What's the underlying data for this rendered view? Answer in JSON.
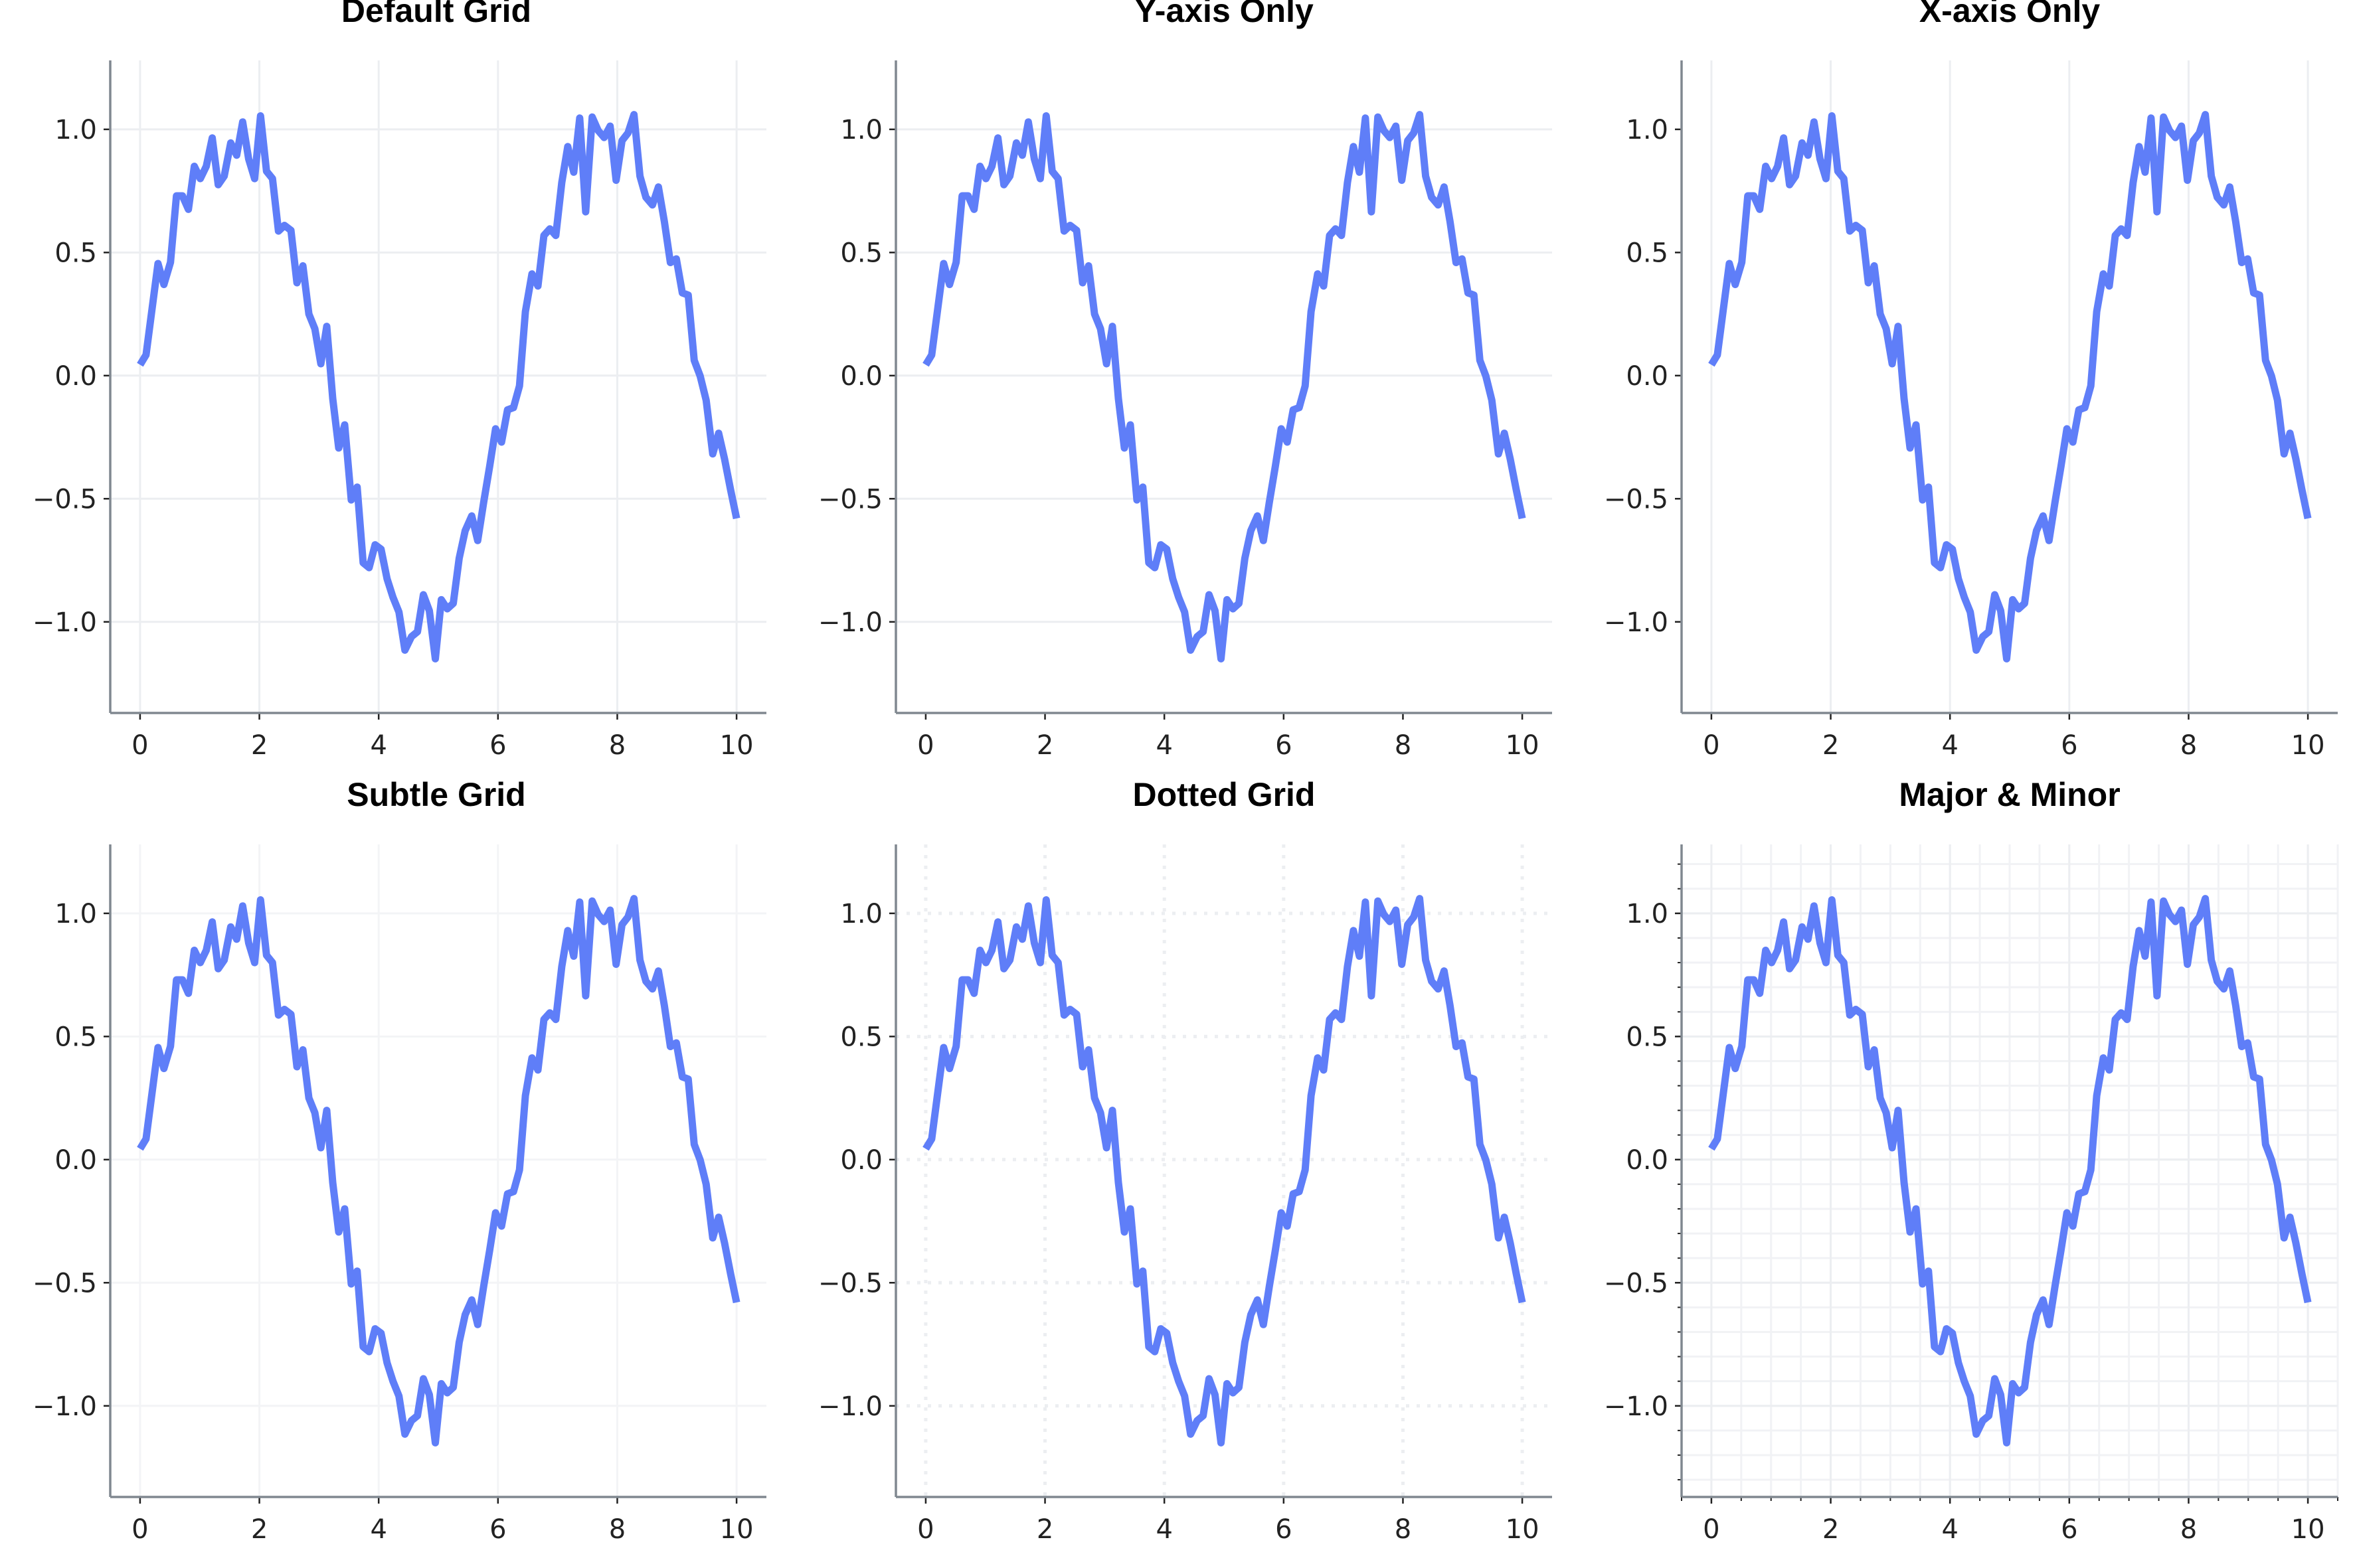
{
  "chart_data": {
    "type": "line",
    "layout": "2x3 subplots",
    "line_color": "#5f7ef8",
    "spine_color": "#808890",
    "grid_color": "#eceef1",
    "xlim": [
      -0.5,
      10.5
    ],
    "ylim": [
      -1.37,
      1.28
    ],
    "x_ticks": [
      0,
      2,
      4,
      6,
      8,
      10
    ],
    "x_tick_labels": [
      "0",
      "2",
      "4",
      "6",
      "8",
      "10"
    ],
    "y_ticks": [
      -1.0,
      -0.5,
      0.0,
      0.5,
      1.0
    ],
    "y_tick_labels": [
      "−1.0",
      "−0.5",
      "0.0",
      "0.5",
      "1.0"
    ],
    "x": [
      0,
      0.1,
      0.2,
      0.3,
      0.4,
      0.51,
      0.61,
      0.71,
      0.81,
      0.91,
      1.01,
      1.11,
      1.21,
      1.31,
      1.41,
      1.52,
      1.62,
      1.72,
      1.82,
      1.92,
      2.02,
      2.12,
      2.22,
      2.32,
      2.42,
      2.53,
      2.63,
      2.73,
      2.83,
      2.93,
      3.03,
      3.13,
      3.23,
      3.33,
      3.43,
      3.54,
      3.64,
      3.74,
      3.84,
      3.94,
      4.04,
      4.14,
      4.24,
      4.34,
      4.44,
      4.55,
      4.65,
      4.75,
      4.85,
      4.95,
      5.05,
      5.15,
      5.25,
      5.35,
      5.45,
      5.56,
      5.66,
      5.76,
      5.86,
      5.96,
      6.06,
      6.16,
      6.26,
      6.36,
      6.46,
      6.57,
      6.67,
      6.77,
      6.87,
      6.97,
      7.07,
      7.17,
      7.27,
      7.37,
      7.47,
      7.58,
      7.68,
      7.78,
      7.88,
      7.98,
      8.08,
      8.18,
      8.28,
      8.38,
      8.48,
      8.59,
      8.69,
      8.79,
      8.89,
      8.99,
      9.09,
      9.19,
      9.29,
      9.39,
      9.49,
      9.6,
      9.7,
      9.8,
      9.9,
      10.0
    ],
    "y": [
      0.044,
      0.084,
      0.27,
      0.455,
      0.37,
      0.46,
      0.73,
      0.73,
      0.675,
      0.85,
      0.8,
      0.85,
      0.965,
      0.775,
      0.81,
      0.945,
      0.895,
      1.03,
      0.88,
      0.8,
      1.055,
      0.83,
      0.8,
      0.587,
      0.61,
      0.59,
      0.377,
      0.446,
      0.25,
      0.19,
      0.048,
      0.2,
      -0.093,
      -0.294,
      -0.2,
      -0.505,
      -0.453,
      -0.76,
      -0.78,
      -0.687,
      -0.705,
      -0.825,
      -0.9,
      -0.96,
      -1.115,
      -1.06,
      -1.04,
      -0.89,
      -0.955,
      -1.15,
      -0.91,
      -0.947,
      -0.925,
      -0.742,
      -0.63,
      -0.57,
      -0.67,
      -0.514,
      -0.37,
      -0.216,
      -0.27,
      -0.139,
      -0.13,
      -0.042,
      0.26,
      0.413,
      0.364,
      0.569,
      0.596,
      0.569,
      0.784,
      0.93,
      0.826,
      1.046,
      0.665,
      1.05,
      0.995,
      0.967,
      1.013,
      0.793,
      0.954,
      0.985,
      1.06,
      0.81,
      0.724,
      0.693,
      0.766,
      0.625,
      0.459,
      0.474,
      0.336,
      0.327,
      0.062,
      -0.002,
      -0.1,
      -0.318,
      -0.234,
      -0.34,
      -0.464,
      -0.58
    ],
    "subplots": [
      {
        "title": "Default Grid",
        "grid": "both"
      },
      {
        "title": "Y-axis Only",
        "grid": "y"
      },
      {
        "title": "X-axis Only",
        "grid": "x"
      },
      {
        "title": "Subtle Grid",
        "grid": "both-subtle"
      },
      {
        "title": "Dotted Grid",
        "grid": "both-dotted"
      },
      {
        "title": "Major & Minor",
        "grid": "major-minor",
        "x_minor_step": 0.5,
        "y_minor_step": 0.1
      }
    ]
  }
}
